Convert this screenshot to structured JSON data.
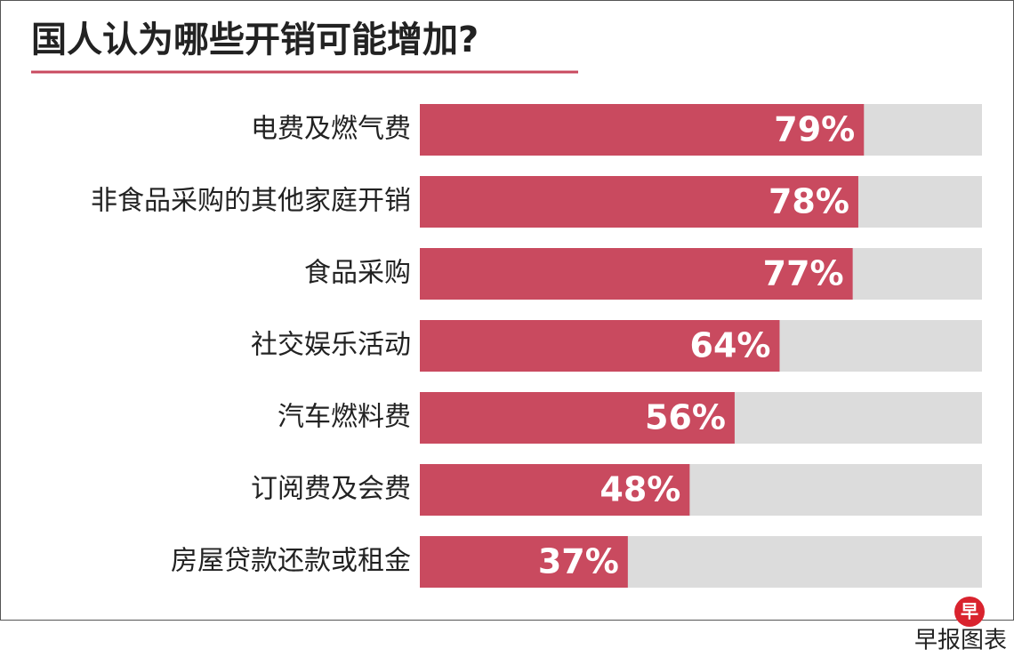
{
  "chart_data": {
    "type": "bar",
    "orientation": "horizontal",
    "title": "国人认为哪些开销可能增加?",
    "categories": [
      "电费及燃气费",
      "非食品采购的其他家庭开销",
      "食品采购",
      "社交娱乐活动",
      "汽车燃料费",
      "订阅费及会费",
      "房屋贷款还款或租金"
    ],
    "values": [
      79,
      78,
      77,
      64,
      56,
      48,
      37
    ],
    "value_labels": [
      "79%",
      "78%",
      "77%",
      "64%",
      "56%",
      "48%",
      "37%"
    ],
    "color": "#c94a5f",
    "track_color": "#dcdcdc",
    "xlim": [
      0,
      100
    ],
    "credit": "早报图表",
    "logo": "早"
  }
}
